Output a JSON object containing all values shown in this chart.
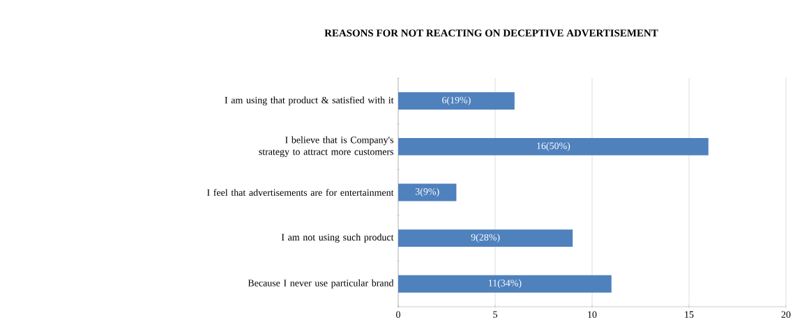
{
  "chart_data": {
    "type": "bar",
    "orientation": "horizontal",
    "title": "REASONS FOR NOT REACTING ON DECEPTIVE ADVERTISEMENT",
    "categories": [
      "I am using that product & satisfied with it",
      "I believe that is Company's strategy to attract more customers",
      "I feel that advertisements are for entertainment",
      "I am not using such product",
      "Because I never use particular brand"
    ],
    "values": [
      6,
      16,
      3,
      9,
      11
    ],
    "value_labels": [
      "6(19%)",
      "16(50%)",
      "3(9%)",
      "9(28%)",
      "11(34%)"
    ],
    "color": "#4f81bd",
    "xlim": [
      0,
      20
    ],
    "xticks": [
      0,
      5,
      10,
      15,
      20
    ],
    "grid": "x"
  }
}
